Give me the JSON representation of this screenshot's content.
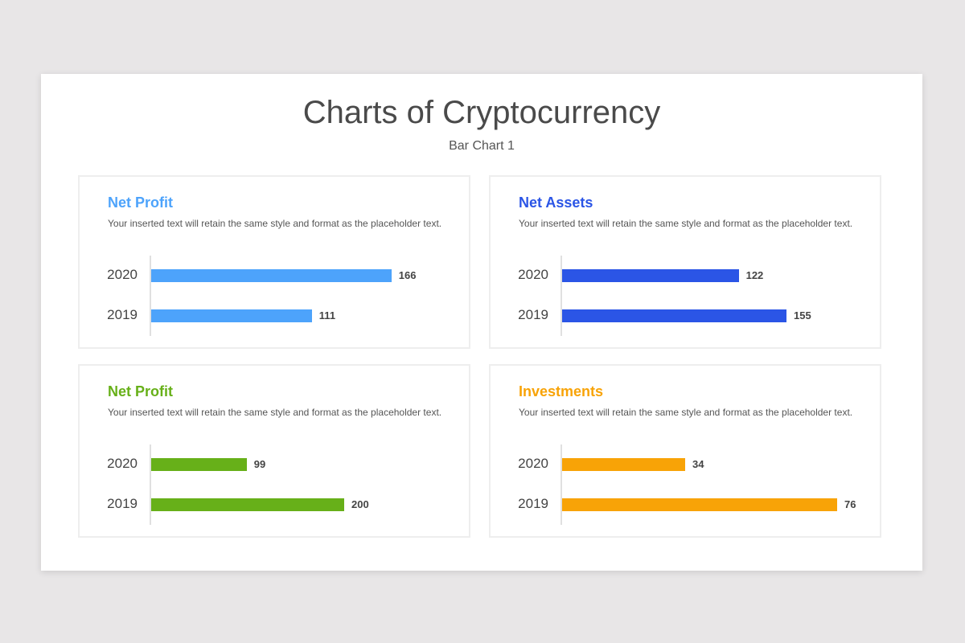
{
  "header": {
    "title": "Charts of Cryptocurrency",
    "subtitle": "Bar Chart 1"
  },
  "chart_data": [
    {
      "type": "bar",
      "orientation": "horizontal",
      "title": "Net Profit",
      "description": "Your inserted text will retain the same style and format as the placeholder text.",
      "color": "#4da3fb",
      "categories": [
        "2020",
        "2019"
      ],
      "values": [
        166,
        111
      ],
      "xlim": [
        0,
        200
      ]
    },
    {
      "type": "bar",
      "orientation": "horizontal",
      "title": "Net Assets",
      "description": "Your inserted text will retain the same style and format as the placeholder text.",
      "color": "#2b55e6",
      "categories": [
        "2020",
        "2019"
      ],
      "values": [
        122,
        155
      ],
      "xlim": [
        0,
        200
      ]
    },
    {
      "type": "bar",
      "orientation": "horizontal",
      "title": "Net Profit",
      "description": "Your inserted text will retain the same style and format as the placeholder text.",
      "color": "#67b019",
      "categories": [
        "2020",
        "2019"
      ],
      "values": [
        99,
        200
      ],
      "xlim": [
        0,
        300
      ]
    },
    {
      "type": "bar",
      "orientation": "horizontal",
      "title": "Investments",
      "description": "Your inserted text will retain the same style and format as the placeholder text.",
      "color": "#f8a307",
      "categories": [
        "2020",
        "2019"
      ],
      "values": [
        34,
        76
      ],
      "xlim": [
        0,
        80
      ]
    }
  ]
}
